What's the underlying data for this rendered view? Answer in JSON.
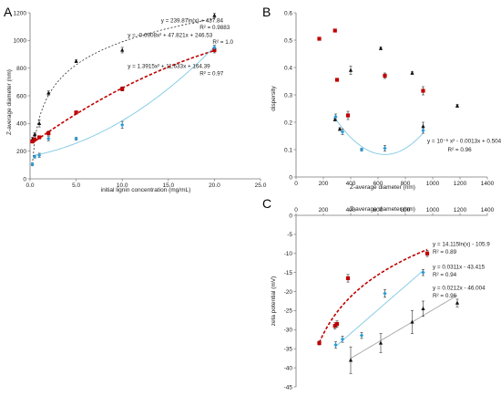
{
  "figure": {
    "colors": {
      "red": "#c00000",
      "blue": "#2e9bd6",
      "black": "#111111",
      "gray": "#a6a6a6",
      "lightblue": "#7ec8e3"
    }
  },
  "chart_data": [
    {
      "panel": "A",
      "type": "scatter",
      "xlabel": "initial lignin concentration (mg/mL)",
      "ylabel": "Z-average diameter (nm)",
      "xlim": [
        0,
        25
      ],
      "ylim": [
        0,
        1200
      ],
      "xticks": [
        "0.0",
        "5.0",
        "10.0",
        "15.0",
        "20.0",
        "25.0"
      ],
      "yticks": [
        "0",
        "200",
        "400",
        "600",
        "800",
        "1000",
        "1200"
      ],
      "series": [
        {
          "color": "black",
          "marker": "triangle",
          "x": [
            0.25,
            0.5,
            1,
            2,
            5,
            10,
            20
          ],
          "y": [
            285,
            320,
            400,
            620,
            850,
            930,
            1180
          ],
          "err": [
            15,
            15,
            25,
            15,
            10,
            20,
            15
          ]
        },
        {
          "color": "red",
          "marker": "square",
          "x": [
            0.25,
            0.5,
            1,
            2,
            5,
            10,
            20
          ],
          "y": [
            270,
            285,
            300,
            330,
            480,
            650,
            930
          ],
          "err": [
            10,
            10,
            10,
            15,
            10,
            15,
            20
          ]
        },
        {
          "color": "blue",
          "marker": "diamond",
          "x": [
            0.25,
            0.5,
            1,
            2,
            5,
            10,
            20
          ],
          "y": [
            105,
            160,
            170,
            290,
            290,
            390,
            950
          ],
          "err": [
            10,
            10,
            15,
            15,
            10,
            25,
            15
          ]
        }
      ],
      "fits": [
        {
          "color": "black",
          "style": "dashed",
          "kind": "log",
          "a": 239.87,
          "b": 437.84,
          "xrange": [
            0.25,
            20
          ]
        },
        {
          "color": "red",
          "style": "dashed",
          "kind": "poly2",
          "a": -0.6908,
          "b": 47.821,
          "c": 246.53,
          "xrange": [
            0.25,
            20
          ]
        },
        {
          "color": "lightblue",
          "style": "solid",
          "kind": "poly2",
          "a": 1.3915,
          "b": 11.633,
          "c": 164.39,
          "xrange": [
            0.5,
            20
          ]
        }
      ],
      "annotations": [
        {
          "text": "y = 239.87ln(x) + 437.84",
          "pos": [
            14.2,
            1130
          ]
        },
        {
          "text": "R² = 0.9883",
          "pos": [
            18.4,
            1080
          ]
        },
        {
          "text": "y = -0.6908x² + 47.821x + 246.53",
          "pos": [
            10.6,
            1025
          ]
        },
        {
          "text": "R² = 1.0",
          "pos": [
            19.8,
            975
          ]
        },
        {
          "text": "y = 1.3915x² + 11.633x + 164.39",
          "pos": [
            10.6,
            800
          ]
        },
        {
          "text": "R² = 0.97",
          "pos": [
            18.4,
            750
          ]
        }
      ]
    },
    {
      "panel": "B",
      "type": "scatter",
      "xlabel": "Z-average diameter (nm)",
      "ylabel": "dispersity",
      "xlim": [
        0,
        1400
      ],
      "ylim": [
        0,
        0.6
      ],
      "xticks": [
        "0",
        "200",
        "400",
        "600",
        "800",
        "1000",
        "1200",
        "1400"
      ],
      "yticks": [
        "0",
        "0.1",
        "0.2",
        "0.3",
        "0.4",
        "0.5",
        "0.6"
      ],
      "series": [
        {
          "color": "red",
          "marker": "square",
          "x": [
            170,
            285,
            300,
            380,
            650,
            930
          ],
          "y": [
            0.505,
            0.535,
            0.355,
            0.225,
            0.37,
            0.315
          ],
          "err": [
            0.005,
            0.005,
            0.005,
            0.015,
            0.01,
            0.015
          ]
        },
        {
          "color": "black",
          "marker": "triangle",
          "x": [
            285,
            320,
            400,
            620,
            850,
            930,
            1180
          ],
          "y": [
            0.21,
            0.175,
            0.39,
            0.47,
            0.38,
            0.185,
            0.26
          ],
          "err": [
            0.005,
            0.005,
            0.015,
            0.005,
            0.005,
            0.015,
            0.005
          ]
        },
        {
          "color": "blue",
          "marker": "diamond",
          "x": [
            290,
            340,
            480,
            650,
            930
          ],
          "y": [
            0.22,
            0.165,
            0.1,
            0.105,
            0.17
          ],
          "err": [
            0.01,
            0.01,
            0.005,
            0.01,
            0.01
          ]
        }
      ],
      "fits": [
        {
          "color": "lightblue",
          "style": "solid",
          "kind": "poly2",
          "a": 1e-06,
          "b": -0.0013,
          "c": 0.5047,
          "xrange": [
            280,
            930
          ]
        }
      ],
      "annotations": [
        {
          "text": "y = 10⁻⁶ x² - 0.0013x + 0.5047",
          "pos": [
            960,
            0.125
          ]
        },
        {
          "text": "R² = 0.96",
          "pos": [
            1110,
            0.093
          ]
        }
      ]
    },
    {
      "panel": "C",
      "type": "scatter",
      "xlabel": "Z-average diameter (nm)",
      "ylabel": "zeta potential (mV)",
      "xlim": [
        0,
        1400
      ],
      "ylim": [
        -45,
        0
      ],
      "xticks": [
        "0",
        "200",
        "400",
        "600",
        "800",
        "1000",
        "1200",
        "1400"
      ],
      "yticks": [
        "0",
        "-5",
        "-10",
        "-15",
        "-20",
        "-25",
        "-30",
        "-35",
        "-40",
        "-45"
      ],
      "series": [
        {
          "color": "red",
          "marker": "square",
          "x": [
            170,
            285,
            300,
            380,
            960
          ],
          "y": [
            -33.5,
            -29,
            -28.5,
            -16.5,
            -10
          ],
          "err": [
            0.5,
            0.8,
            0.8,
            1,
            0.8
          ]
        },
        {
          "color": "blue",
          "marker": "diamond",
          "x": [
            290,
            340,
            480,
            650,
            930
          ],
          "y": [
            -34,
            -32.5,
            -31.5,
            -20.5,
            -15
          ],
          "err": [
            0.8,
            0.8,
            0.8,
            1,
            0.8
          ]
        },
        {
          "color": "black",
          "marker": "triangle",
          "x": [
            400,
            620,
            850,
            930,
            1180
          ],
          "y": [
            -38,
            -33.5,
            -28,
            -24.5,
            -23
          ],
          "err": [
            3.5,
            2.5,
            3,
            2,
            1
          ]
        }
      ],
      "fits": [
        {
          "color": "red",
          "style": "dashed",
          "kind": "log",
          "a": 14.115,
          "b": -105.9,
          "xrange": [
            170,
            960
          ]
        },
        {
          "color": "lightblue",
          "style": "solid",
          "kind": "linear",
          "a": 0.0311,
          "b": -43.415,
          "xrange": [
            290,
            930
          ]
        },
        {
          "color": "gray",
          "style": "solid",
          "kind": "linear",
          "a": 0.0212,
          "b": -46.004,
          "xrange": [
            400,
            1180
          ]
        }
      ],
      "annotations": [
        {
          "text": "y = 14.115ln(x) - 105.9",
          "pos": [
            1000,
            -8
          ]
        },
        {
          "text": "R² = 0.89",
          "pos": [
            1000,
            -10
          ]
        },
        {
          "text": "y = 0.0311x - 43.415",
          "pos": [
            1000,
            -14
          ]
        },
        {
          "text": "R² = 0.94",
          "pos": [
            1000,
            -16
          ]
        },
        {
          "text": "y = 0.0212x - 46.004",
          "pos": [
            1000,
            -19.5
          ]
        },
        {
          "text": "R² = 0.96",
          "pos": [
            1000,
            -21.5
          ]
        }
      ]
    }
  ]
}
